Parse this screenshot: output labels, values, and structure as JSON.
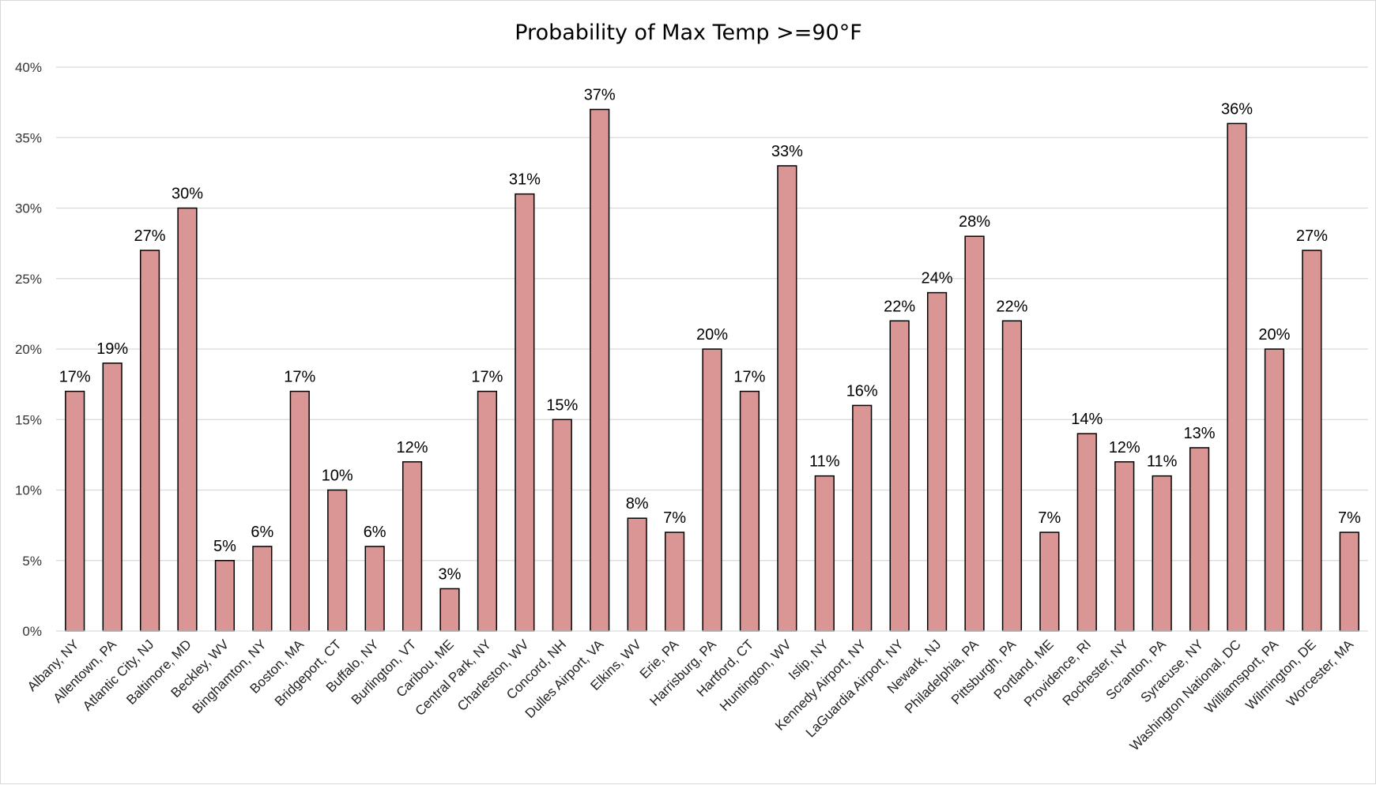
{
  "chart_data": {
    "type": "bar",
    "title": "Probability  of Max Temp >=90°F",
    "xlabel": "",
    "ylabel": "",
    "ylim": [
      0,
      40
    ],
    "yticks": [
      "0%",
      "5%",
      "10%",
      "15%",
      "20%",
      "25%",
      "30%",
      "35%",
      "40%"
    ],
    "grid": true,
    "bar_color": "#d99694",
    "bar_edge_color": "#000000",
    "categories": [
      "Albany, NY",
      "Allentown, PA",
      "Atlantic City, NJ",
      "Baltimore, MD",
      "Beckley, WV",
      "Binghamton, NY",
      "Boston, MA",
      "Bridgeport, CT",
      "Buffalo, NY",
      "Burlington, VT",
      "Caribou, ME",
      "Central Park, NY",
      "Charleston, WV",
      "Concord, NH",
      "Dulles Airport, VA",
      "Elkins, WV",
      "Erie, PA",
      "Harrisburg, PA",
      "Hartford, CT",
      "Huntington, WV",
      "Islip, NY",
      "Kennedy Airport, NY",
      "LaGuardia Airport, NY",
      "Newark, NJ",
      "Philadelphia, PA",
      "Pittsburgh, PA",
      "Portland, ME",
      "Providence, RI",
      "Rochester, NY",
      "Scranton, PA",
      "Syracuse, NY",
      "Washington National, DC",
      "Williamsport, PA",
      "Wilmington, DE",
      "Worcester, MA"
    ],
    "values": [
      17,
      19,
      27,
      30,
      5,
      6,
      17,
      10,
      6,
      12,
      3,
      17,
      31,
      15,
      37,
      8,
      7,
      20,
      17,
      33,
      11,
      16,
      22,
      24,
      28,
      22,
      7,
      14,
      12,
      11,
      13,
      36,
      20,
      27,
      7
    ],
    "data_labels": [
      "17%",
      "19%",
      "27%",
      "30%",
      "5%",
      "6%",
      "17%",
      "10%",
      "6%",
      "12%",
      "3%",
      "17%",
      "31%",
      "15%",
      "37%",
      "8%",
      "7%",
      "20%",
      "17%",
      "33%",
      "11%",
      "16%",
      "22%",
      "24%",
      "28%",
      "22%",
      "7%",
      "14%",
      "12%",
      "11%",
      "13%",
      "36%",
      "20%",
      "27%",
      "7%"
    ]
  }
}
